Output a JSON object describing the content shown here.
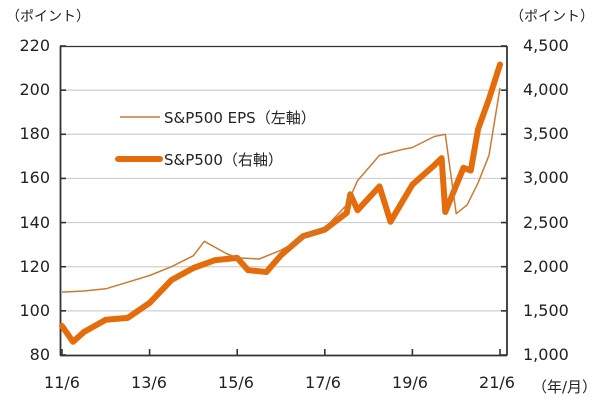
{
  "chart_data": {
    "type": "line",
    "title": "",
    "left_axis": {
      "unit_label": "（ポイント）",
      "ylim": [
        80,
        220
      ],
      "ticks": [
        "220",
        "200",
        "180",
        "160",
        "140",
        "120",
        "100",
        "80"
      ]
    },
    "right_axis": {
      "unit_label": "（ポイント）",
      "ylim": [
        1000,
        4500
      ],
      "ticks": [
        "4,500",
        "4,000",
        "3,500",
        "3,000",
        "2,500",
        "2,000",
        "1,500",
        "1,000"
      ]
    },
    "x_axis": {
      "unit_label": "（年/月）",
      "ticks": [
        "11/6",
        "13/6",
        "15/6",
        "17/6",
        "19/6",
        "21/6"
      ]
    },
    "grid": true,
    "legend_position": "upper-left inside",
    "series": [
      {
        "name": "S&P500 EPS（左軸）",
        "axis": "left",
        "color": "#c97b35",
        "width": 1.5,
        "x": [
          "11/6",
          "11/12",
          "12/6",
          "12/12",
          "13/6",
          "13/12",
          "14/6",
          "14/9",
          "15/3",
          "15/6",
          "15/12",
          "16/6",
          "16/12",
          "17/6",
          "17/12",
          "18/3",
          "18/9",
          "19/3",
          "19/6",
          "19/12",
          "20/3",
          "20/6",
          "20/9",
          "20/12",
          "21/3",
          "21/6"
        ],
        "values": [
          108.5,
          109,
          110,
          113,
          116,
          120,
          125,
          131.5,
          126,
          124,
          123.5,
          127.5,
          133,
          137.5,
          148,
          159,
          170.5,
          173,
          174,
          179,
          180,
          144,
          148,
          158,
          170.5,
          201
        ]
      },
      {
        "name": "S&P500（右軸）",
        "axis": "right",
        "color": "#e46c0a",
        "width": 6,
        "x": [
          "11/6",
          "11/9",
          "11/12",
          "12/6",
          "12/12",
          "13/6",
          "13/12",
          "14/6",
          "14/12",
          "15/6",
          "15/9",
          "16/2",
          "16/6",
          "16/12",
          "17/6",
          "17/12",
          "18/1",
          "18/3",
          "18/9",
          "18/12",
          "19/6",
          "19/12",
          "20/2",
          "20/3",
          "20/8",
          "20/10",
          "20/12",
          "21/3",
          "21/6"
        ],
        "values": [
          1330,
          1150,
          1260,
          1400,
          1420,
          1590,
          1850,
          1985,
          2075,
          2100,
          1960,
          1940,
          2130,
          2345,
          2420,
          2610,
          2820,
          2640,
          2910,
          2510,
          2930,
          3150,
          3230,
          2620,
          3120,
          3090,
          3560,
          3900,
          4290
        ]
      }
    ]
  },
  "legend": {
    "eps_label": "S&P500 EPS（左軸）",
    "sp_label": "S&P500（右軸）"
  }
}
